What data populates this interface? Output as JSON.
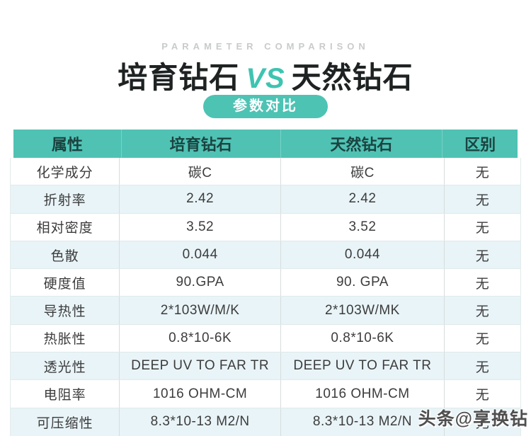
{
  "header": {
    "eyebrow": "PARAMETER COMPARISON",
    "title_left": "培育钻石",
    "title_vs": "VS",
    "title_right": "天然钻石",
    "badge": "参数对比"
  },
  "chart_data": {
    "type": "table",
    "title": "培育钻石 VS 天然钻石",
    "subtitle": "PARAMETER COMPARISON",
    "badge": "参数对比",
    "columns": [
      "属性",
      "培育钻石",
      "天然钻石",
      "区别"
    ],
    "rows": [
      {
        "attr": "化学成分",
        "lab": "碳C",
        "natural": "碳C",
        "diff": "无"
      },
      {
        "attr": "折射率",
        "lab": "2.42",
        "natural": "2.42",
        "diff": "无"
      },
      {
        "attr": "相对密度",
        "lab": "3.52",
        "natural": "3.52",
        "diff": "无"
      },
      {
        "attr": "色散",
        "lab": "0.044",
        "natural": "0.044",
        "diff": "无"
      },
      {
        "attr": "硬度值",
        "lab": "90.GPA",
        "natural": "90. GPA",
        "diff": "无"
      },
      {
        "attr": "导热性",
        "lab": "2*103W/M/K",
        "natural": "2*103W/MK",
        "diff": "无"
      },
      {
        "attr": "热胀性",
        "lab": "0.8*10-6K",
        "natural": "0.8*10-6K",
        "diff": "无"
      },
      {
        "attr": "透光性",
        "lab": "DEEP UV TO FAR TR",
        "natural": "DEEP UV TO FAR TR",
        "diff": "无"
      },
      {
        "attr": "电阻率",
        "lab": "1016 OHM-CM",
        "natural": "1016 OHM-CM",
        "diff": "无"
      },
      {
        "attr": "可压缩性",
        "lab": "8.3*10-13 M2/N",
        "natural": "8.3*10-13 M2/N",
        "diff": "无"
      }
    ]
  },
  "watermark": {
    "text": "头条@享换钻"
  },
  "colors": {
    "accent_teal": "#4FC2B4",
    "vs_teal": "#3EC4B1",
    "row_alt_bg": "#E9F4F8",
    "header_text": "#1B4340",
    "body_text": "#3C3C3C",
    "eyebrow_gray": "#C9CBCB"
  }
}
